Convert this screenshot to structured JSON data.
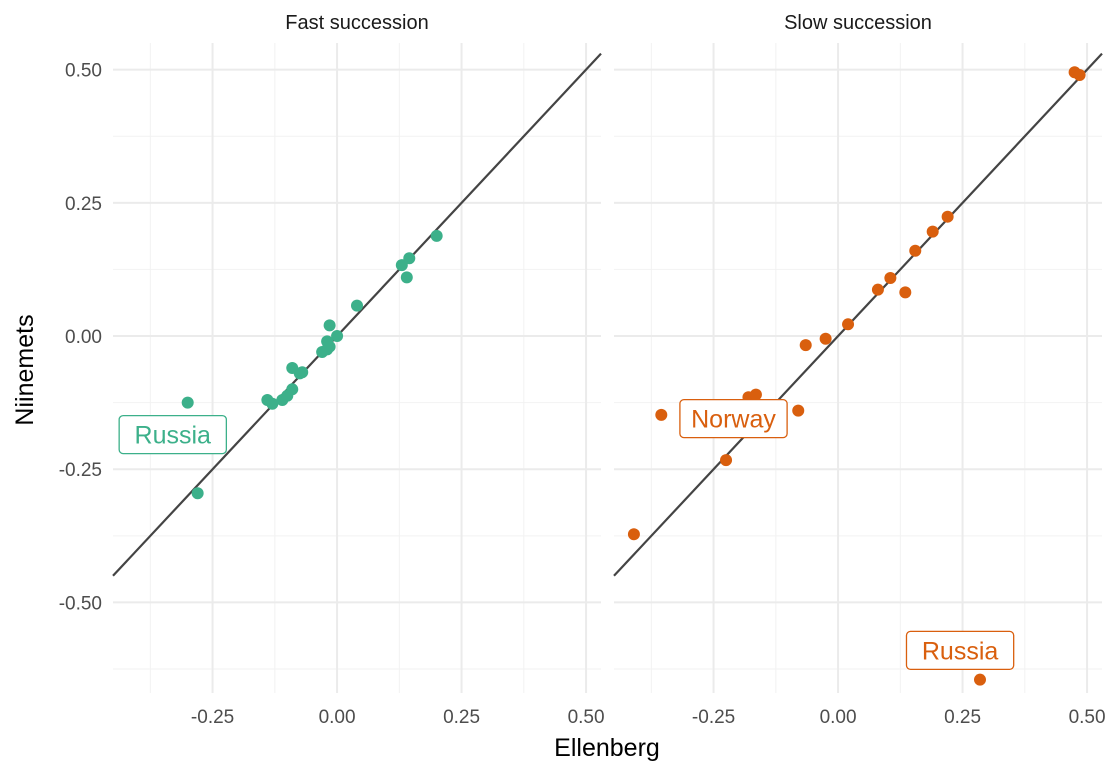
{
  "chart_data": {
    "type": "scatter",
    "xlabel": "Ellenberg",
    "ylabel": "Niinemets",
    "xlim": [
      -0.45,
      0.53
    ],
    "ylim": [
      -0.67,
      0.55
    ],
    "x_ticks": [
      -0.25,
      0.0,
      0.25,
      0.5
    ],
    "x_tick_labels": [
      "-0.25",
      "0.00",
      "0.25",
      "0.50"
    ],
    "y_ticks": [
      -0.5,
      -0.25,
      0.0,
      0.25,
      0.5
    ],
    "y_tick_labels": [
      "-0.50",
      "-0.25",
      "0.00",
      "0.25",
      "0.50"
    ],
    "grid": true,
    "reference_line": "y = x",
    "panels": [
      {
        "title": "Fast succession",
        "color": "#3cb08a",
        "points": [
          {
            "x": -0.3,
            "y": -0.125
          },
          {
            "x": -0.28,
            "y": -0.295
          },
          {
            "x": -0.14,
            "y": -0.12
          },
          {
            "x": -0.13,
            "y": -0.127
          },
          {
            "x": -0.11,
            "y": -0.12
          },
          {
            "x": -0.1,
            "y": -0.112
          },
          {
            "x": -0.09,
            "y": -0.1
          },
          {
            "x": -0.09,
            "y": -0.06
          },
          {
            "x": -0.075,
            "y": -0.07
          },
          {
            "x": -0.07,
            "y": -0.068
          },
          {
            "x": -0.03,
            "y": -0.03
          },
          {
            "x": -0.02,
            "y": -0.025
          },
          {
            "x": -0.02,
            "y": -0.01
          },
          {
            "x": -0.015,
            "y": -0.02
          },
          {
            "x": -0.015,
            "y": 0.02
          },
          {
            "x": 0.0,
            "y": 0.0
          },
          {
            "x": 0.04,
            "y": 0.057
          },
          {
            "x": 0.13,
            "y": 0.133
          },
          {
            "x": 0.14,
            "y": 0.11
          },
          {
            "x": 0.145,
            "y": 0.146
          },
          {
            "x": 0.2,
            "y": 0.188
          }
        ],
        "annotations": [
          {
            "label": "Russia",
            "x": -0.33,
            "y": -0.185
          }
        ]
      },
      {
        "title": "Slow succession",
        "color": "#d95f0e",
        "points": [
          {
            "x": -0.41,
            "y": -0.372
          },
          {
            "x": -0.355,
            "y": -0.148
          },
          {
            "x": -0.225,
            "y": -0.233
          },
          {
            "x": -0.18,
            "y": -0.115
          },
          {
            "x": -0.165,
            "y": -0.11
          },
          {
            "x": -0.08,
            "y": -0.14
          },
          {
            "x": -0.065,
            "y": -0.017
          },
          {
            "x": -0.025,
            "y": -0.005
          },
          {
            "x": 0.02,
            "y": 0.022
          },
          {
            "x": 0.08,
            "y": 0.087
          },
          {
            "x": 0.105,
            "y": 0.109
          },
          {
            "x": 0.135,
            "y": 0.082
          },
          {
            "x": 0.155,
            "y": 0.16
          },
          {
            "x": 0.19,
            "y": 0.196
          },
          {
            "x": 0.22,
            "y": 0.224
          },
          {
            "x": 0.285,
            "y": -0.645
          },
          {
            "x": 0.475,
            "y": 0.495
          },
          {
            "x": 0.485,
            "y": 0.49
          }
        ],
        "annotations": [
          {
            "label": "Norway",
            "x": -0.21,
            "y": -0.155
          },
          {
            "label": "Russia",
            "x": 0.245,
            "y": -0.59
          }
        ]
      }
    ]
  }
}
